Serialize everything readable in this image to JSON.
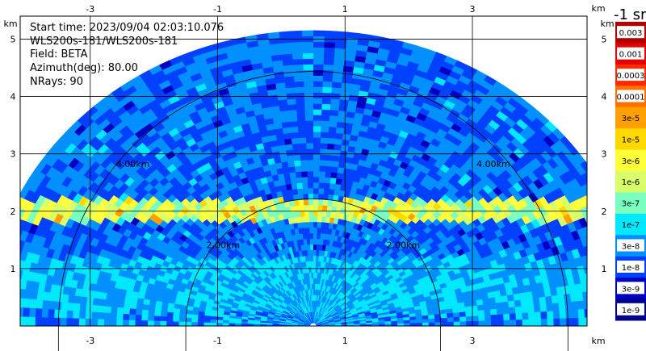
{
  "info": {
    "start_time": "Start time: 2023/09/04 02:03:10.076",
    "instrument": "WLS200s-181/WLS200s-181",
    "field": "Field: BETA",
    "azimuth": "Azimuth(deg): 80.00",
    "nrays": "NRays: 90"
  },
  "colorbar": {
    "title": "-1 sr",
    "labels": [
      "0.003",
      "0.001",
      "0.0003",
      "0.0001",
      "3e-5",
      "1e-5",
      "3e-6",
      "1e-6",
      "3e-7",
      "1e-7",
      "3e-8",
      "1e-8",
      "3e-9",
      "1e-9"
    ],
    "colors": [
      "#b00000",
      "#e60000",
      "#ff2a00",
      "#ff7000",
      "#ff9f00",
      "#ffd800",
      "#ffff3a",
      "#d8ff6a",
      "#7affc0",
      "#00e8ff",
      "#0090ff",
      "#0040ff",
      "#0000c0",
      "#00008a"
    ]
  },
  "chart_data": {
    "type": "heatmap",
    "subtype": "RHI polar scan",
    "xlim": [
      -4.1,
      4.8
    ],
    "ylim": [
      0,
      5.4
    ],
    "x_ticks": [
      -3,
      -1,
      1,
      3
    ],
    "y_ticks": [
      1,
      2,
      3,
      4,
      5
    ],
    "axis_unit": "km",
    "range_rings_km": [
      2,
      4
    ],
    "ring_labels": [
      "2.00km",
      "2.00km",
      "4.00km",
      "4.00km"
    ],
    "radar_position": [
      0.5,
      0
    ],
    "max_range_km": 5.1,
    "aerosol_layer_height_km": [
      1.9,
      2.15
    ],
    "grid": true
  }
}
